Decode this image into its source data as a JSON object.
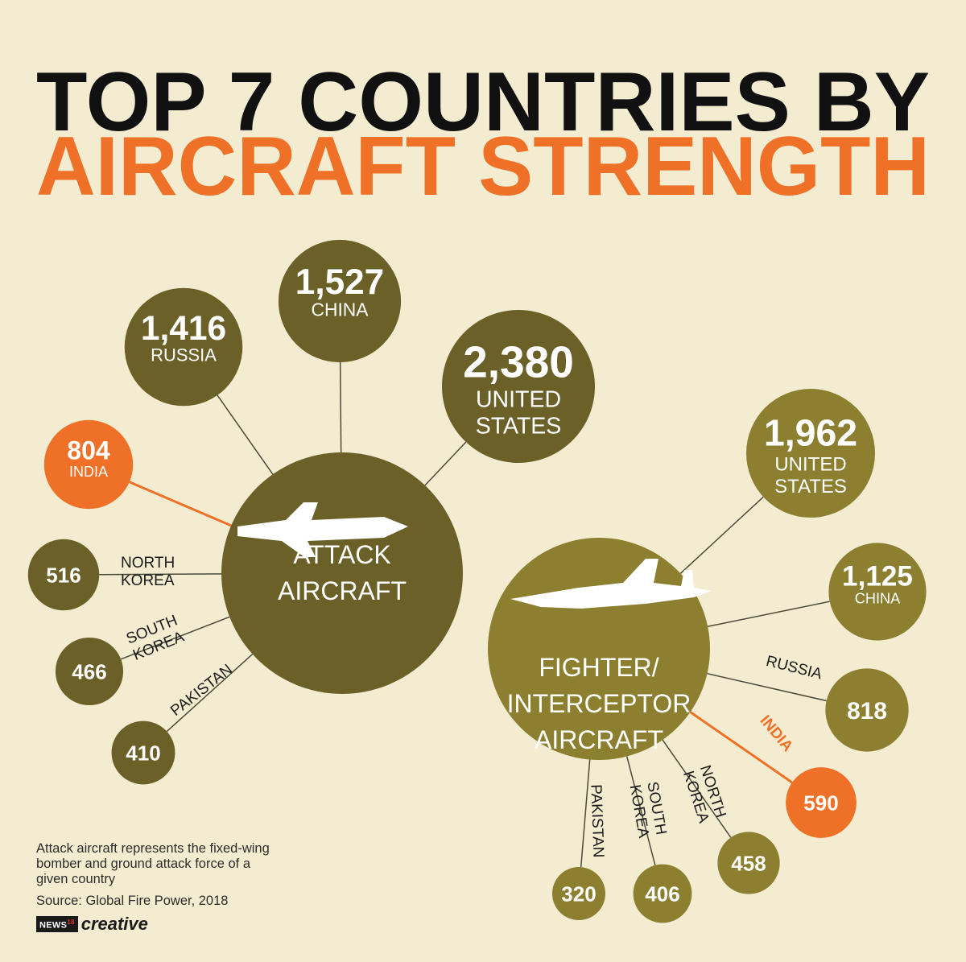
{
  "title_line1": "TOP 7 COUNTRIES BY",
  "title_line2": "AIRCRAFT STRENGTH",
  "colors": {
    "background": "#f4ecd0",
    "attack_bubble": "#6b6128",
    "fighter_bubble": "#8c8030",
    "india": "#ee7127",
    "title_dark": "#111111",
    "title_accent": "#ee7127"
  },
  "icons": {
    "attack": "attack-jet-icon",
    "fighter": "fighter-jet-icon"
  },
  "chart_data": [
    {
      "type": "bubble",
      "hub_label": "ATTACK AIRCRAFT",
      "categories": [
        "United States",
        "China",
        "Russia",
        "India",
        "North Korea",
        "South Korea",
        "Pakistan"
      ],
      "values": [
        2380,
        1527,
        1416,
        804,
        516,
        466,
        410
      ],
      "labels": [
        "2,380",
        "1,527",
        "1,416",
        "804",
        "516",
        "466",
        "410"
      ],
      "country_labels": [
        "UNITED STATES",
        "CHINA",
        "RUSSIA",
        "INDIA",
        "NORTH KOREA",
        "SOUTH KOREA",
        "PAKISTAN"
      ],
      "highlight": "India"
    },
    {
      "type": "bubble",
      "hub_label": "FIGHTER/ INTERCEPTOR AIRCRAFT",
      "categories": [
        "United States",
        "China",
        "Russia",
        "India",
        "North Korea",
        "South Korea",
        "Pakistan"
      ],
      "values": [
        1962,
        1125,
        818,
        590,
        458,
        406,
        320
      ],
      "labels": [
        "1,962",
        "1,125",
        "818",
        "590",
        "458",
        "406",
        "320"
      ],
      "country_labels": [
        "UNITED STATES",
        "CHINA",
        "RUSSIA",
        "INDIA",
        "NORTH KOREA",
        "SOUTH KOREA",
        "PAKISTAN"
      ],
      "highlight": "India"
    }
  ],
  "footnote": "Attack aircraft represents the fixed-wing bomber and ground attack force of a given country",
  "source": "Source: Global Fire Power, 2018",
  "logo_mark": "NEWS",
  "logo_sup": "18",
  "logo_word": "creative"
}
